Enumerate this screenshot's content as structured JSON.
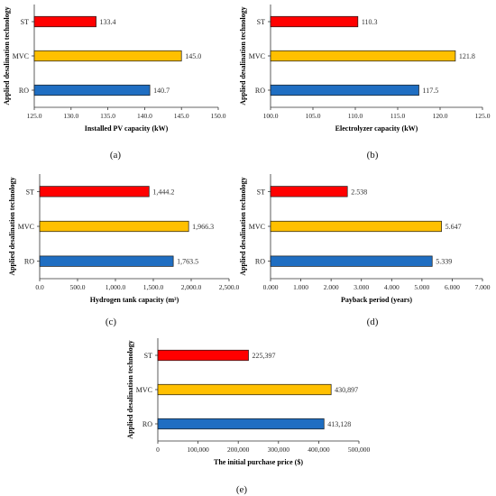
{
  "colors": {
    "ST": "#ff0000",
    "MVC": "#ffc000",
    "RO": "#1f6ec2"
  },
  "chart_data": [
    {
      "type": "bar",
      "orientation": "horizontal",
      "panel": "(a)",
      "ylabel": "Applied desalination technology",
      "xlabel": "Installed PV capacity (kW)",
      "categories": [
        "ST",
        "MVC",
        "RO"
      ],
      "values": [
        133.4,
        145.0,
        140.7
      ],
      "value_labels": [
        "133.4",
        "145.0",
        "140.7"
      ],
      "xlim": [
        125.0,
        150.0
      ],
      "xticks": [
        125.0,
        130.0,
        135.0,
        140.0,
        145.0,
        150.0
      ],
      "xtick_labels": [
        "125.0",
        "130.0",
        "135.0",
        "140.0",
        "145.0",
        "150.0"
      ]
    },
    {
      "type": "bar",
      "orientation": "horizontal",
      "panel": "(b)",
      "ylabel": "Applied desalination technology",
      "xlabel": "Electrolyzer capacity (kW)",
      "categories": [
        "ST",
        "MVC",
        "RO"
      ],
      "values": [
        110.3,
        121.8,
        117.5
      ],
      "value_labels": [
        "110.3",
        "121.8",
        "117.5"
      ],
      "xlim": [
        100.0,
        125.0
      ],
      "xticks": [
        100.0,
        105.0,
        110.0,
        115.0,
        120.0,
        125.0
      ],
      "xtick_labels": [
        "100.0",
        "105.0",
        "110.0",
        "115.0",
        "120.0",
        "125.0"
      ]
    },
    {
      "type": "bar",
      "orientation": "horizontal",
      "panel": "(c)",
      "ylabel": "Applied desalination technology",
      "xlabel": "Hydrogen tank capacity (m³)",
      "categories": [
        "ST",
        "MVC",
        "RO"
      ],
      "values": [
        1444.2,
        1966.3,
        1763.5
      ],
      "value_labels": [
        "1,444.2",
        "1,966.3",
        "1,763.5"
      ],
      "xlim": [
        0,
        2500
      ],
      "xticks": [
        0,
        500,
        1000,
        1500,
        2000,
        2500
      ],
      "xtick_labels": [
        "0.0",
        "500.0",
        "1,000.0",
        "1,500.0",
        "2,000.0",
        "2,500.0"
      ]
    },
    {
      "type": "bar",
      "orientation": "horizontal",
      "panel": "(d)",
      "ylabel": "Applied desalination technology",
      "xlabel": "Payback period (years)",
      "categories": [
        "ST",
        "MVC",
        "RO"
      ],
      "values": [
        2.538,
        5.647,
        5.339
      ],
      "value_labels": [
        "2.538",
        "5.647",
        "5.339"
      ],
      "xlim": [
        0,
        7
      ],
      "xticks": [
        0,
        1,
        2,
        3,
        4,
        5,
        6,
        7
      ],
      "xtick_labels": [
        "0.000",
        "1.000",
        "2.000",
        "3.000",
        "4.000",
        "5.000",
        "6.000",
        "7.000"
      ]
    },
    {
      "type": "bar",
      "orientation": "horizontal",
      "panel": "(e)",
      "ylabel": "Applied desalination technology",
      "xlabel": "The initial purchase price ($)",
      "categories": [
        "ST",
        "MVC",
        "RO"
      ],
      "values": [
        225397,
        430897,
        413128
      ],
      "value_labels": [
        "225,397",
        "430,897",
        "413,128"
      ],
      "xlim": [
        0,
        500000
      ],
      "xticks": [
        0,
        100000,
        200000,
        300000,
        400000,
        500000
      ],
      "xtick_labels": [
        "0",
        "100,000",
        "200,000",
        "300,000",
        "400,000",
        "500,000"
      ]
    }
  ]
}
